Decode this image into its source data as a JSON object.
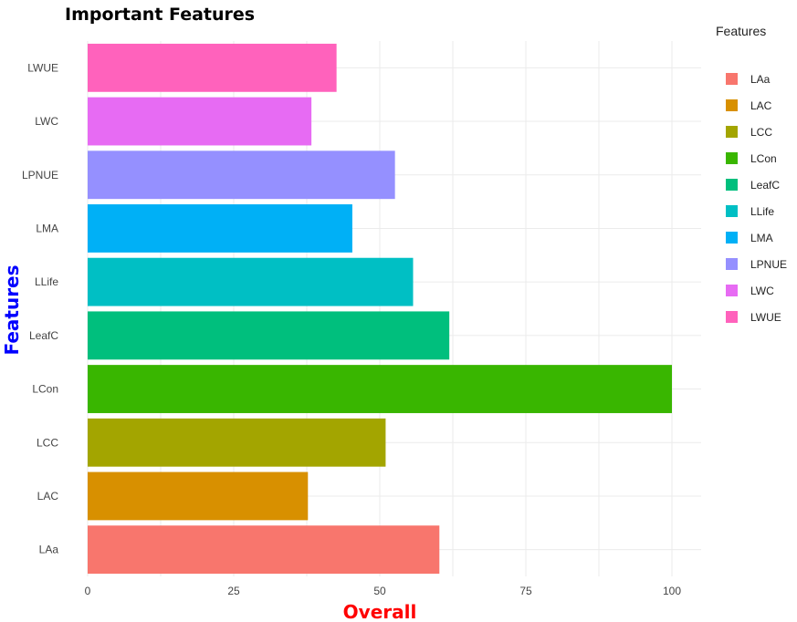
{
  "chart_data": {
    "type": "bar",
    "orientation": "horizontal",
    "title": "Important Features",
    "xlabel": "Overall",
    "ylabel": "Features",
    "categories": [
      "LAa",
      "LAC",
      "LCC",
      "LCon",
      "LeafC",
      "LLife",
      "LMA",
      "LPNUE",
      "LWC",
      "LWUE"
    ],
    "values": [
      60.2,
      37.7,
      51.0,
      100,
      61.9,
      55.7,
      45.3,
      52.6,
      38.3,
      42.6
    ],
    "colors": [
      "#F8766D",
      "#D89000",
      "#A3A500",
      "#39B600",
      "#00BF7D",
      "#00BFC4",
      "#00B0F6",
      "#9590FF",
      "#E76BF3",
      "#FF62BC"
    ],
    "xlim": [
      0,
      105
    ],
    "xticks": [
      0,
      25,
      50,
      75,
      100
    ],
    "grid": true,
    "legend": {
      "title": "Features",
      "position": "right",
      "entries": [
        "LAa",
        "LAC",
        "LCC",
        "LCon",
        "LeafC",
        "LLife",
        "LMA",
        "LPNUE",
        "LWC",
        "LWUE"
      ]
    },
    "ylabel_color": "#0000FF",
    "xlabel_color": "#FF0000"
  }
}
